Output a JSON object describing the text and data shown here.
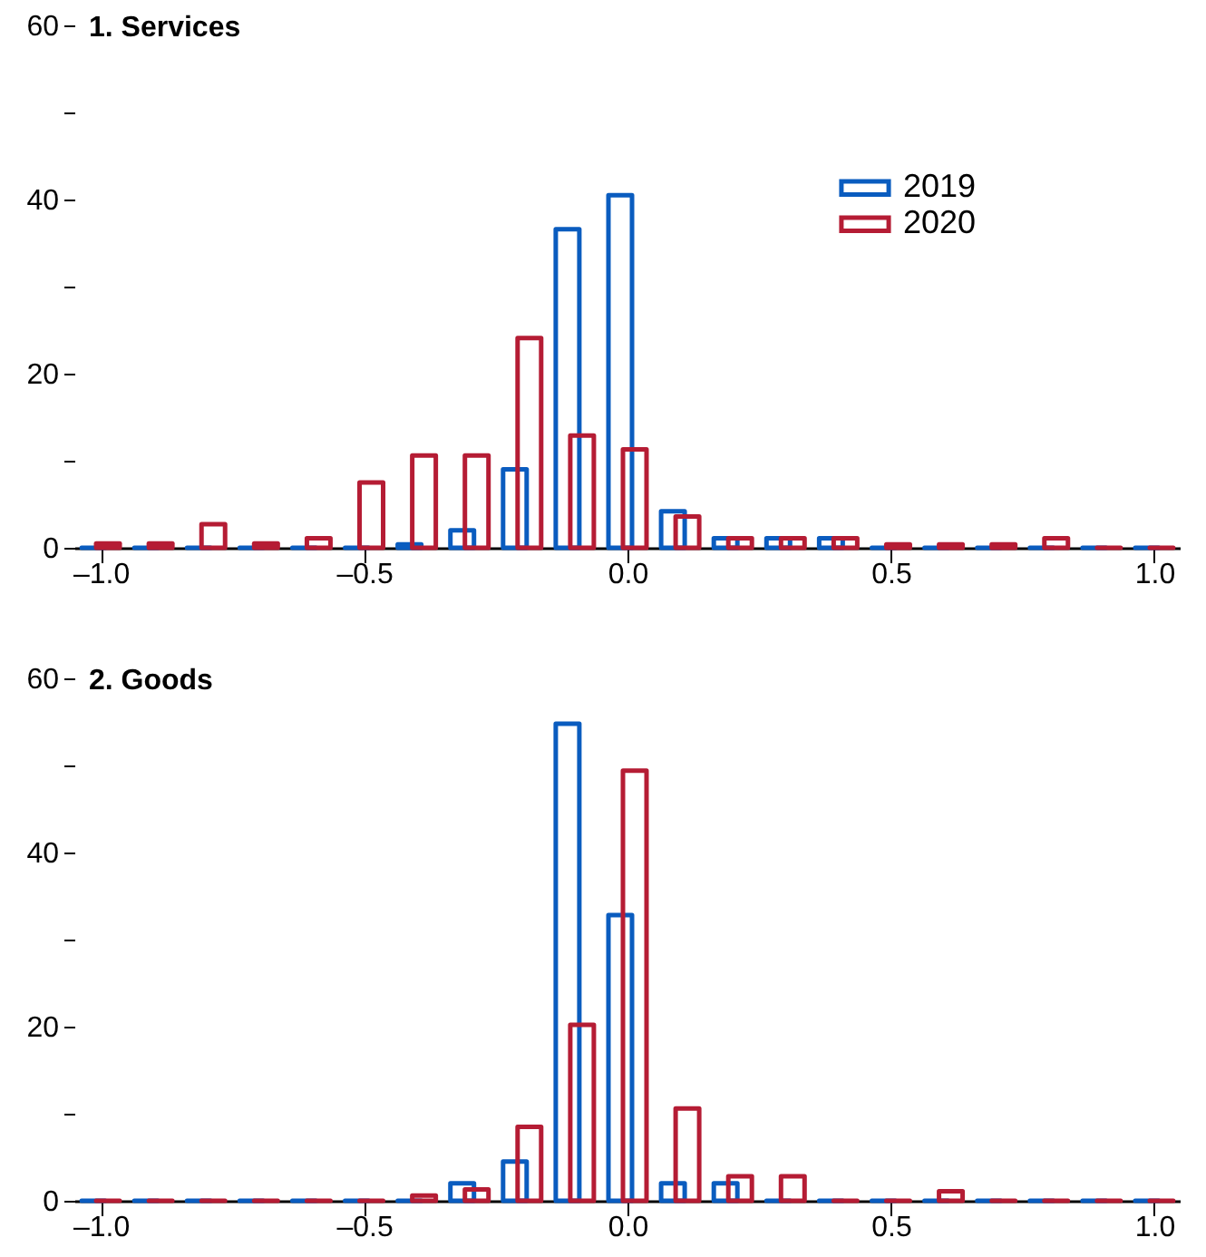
{
  "chart_data": [
    {
      "type": "bar",
      "title": "1. Services",
      "x": [
        -1.0,
        -0.9,
        -0.8,
        -0.7,
        -0.6,
        -0.5,
        -0.4,
        -0.3,
        -0.2,
        -0.1,
        0.0,
        0.1,
        0.2,
        0.3,
        0.4,
        0.5,
        0.6,
        0.7,
        0.8,
        0.9,
        1.0
      ],
      "series": [
        {
          "name": "2019",
          "color": "#0a5cbf",
          "values": [
            0,
            0,
            0,
            0,
            0,
            0,
            0.4,
            2.0,
            9.0,
            36.6,
            40.5,
            4.2,
            1.1,
            1.1,
            1.1,
            0,
            0,
            0,
            0,
            0,
            0
          ]
        },
        {
          "name": "2020",
          "color": "#b51c34",
          "values": [
            0.5,
            0.5,
            2.7,
            0.5,
            1.1,
            7.5,
            10.6,
            10.6,
            24.1,
            12.9,
            11.3,
            3.6,
            1.1,
            1.1,
            1.1,
            0.4,
            0.4,
            0.4,
            1.1,
            0,
            0
          ]
        }
      ],
      "xlim": [
        -1.05,
        1.05
      ],
      "xticks": [
        {
          "value": -1.0,
          "label": "–1.0"
        },
        {
          "value": -0.5,
          "label": "–0.5"
        },
        {
          "value": 0.0,
          "label": "0.0"
        },
        {
          "value": 0.5,
          "label": "0.5"
        },
        {
          "value": 1.0,
          "label": "1.0"
        }
      ],
      "ylim": [
        0,
        60
      ],
      "yticks": [
        0,
        {
          "value": 10,
          "label": null
        },
        20,
        {
          "value": 30,
          "label": null
        },
        40,
        {
          "value": 50,
          "label": null
        },
        60
      ],
      "grid": false,
      "legend": "top right"
    },
    {
      "type": "bar",
      "title": "2. Goods",
      "x": [
        -1.0,
        -0.9,
        -0.8,
        -0.7,
        -0.6,
        -0.5,
        -0.4,
        -0.3,
        -0.2,
        -0.1,
        0.0,
        0.1,
        0.2,
        0.3,
        0.4,
        0.5,
        0.6,
        0.7,
        0.8,
        0.9,
        1.0
      ],
      "series": [
        {
          "name": "2019",
          "color": "#0a5cbf",
          "values": [
            0,
            0,
            0,
            0,
            0,
            0,
            0,
            2.0,
            4.5,
            54.8,
            32.8,
            2.0,
            2.0,
            0,
            0,
            0,
            0,
            0,
            0,
            0,
            0
          ]
        },
        {
          "name": "2020",
          "color": "#b51c34",
          "values": [
            0,
            0,
            0,
            0,
            0,
            0,
            0.6,
            1.3,
            8.5,
            20.2,
            49.4,
            10.6,
            2.8,
            2.8,
            0,
            0,
            1.1,
            0,
            0,
            0,
            0
          ]
        }
      ],
      "xlim": [
        -1.05,
        1.05
      ],
      "xticks": [
        {
          "value": -1.0,
          "label": "–1.0"
        },
        {
          "value": -0.5,
          "label": "–0.5"
        },
        {
          "value": 0.0,
          "label": "0.0"
        },
        {
          "value": 0.5,
          "label": "0.5"
        },
        {
          "value": 1.0,
          "label": "1.0"
        }
      ],
      "ylim": [
        0,
        60
      ],
      "yticks": [
        0,
        {
          "value": 10,
          "label": null
        },
        20,
        {
          "value": 30,
          "label": null
        },
        40,
        {
          "value": 50,
          "label": null
        },
        60
      ],
      "grid": false,
      "legend": "right"
    }
  ]
}
